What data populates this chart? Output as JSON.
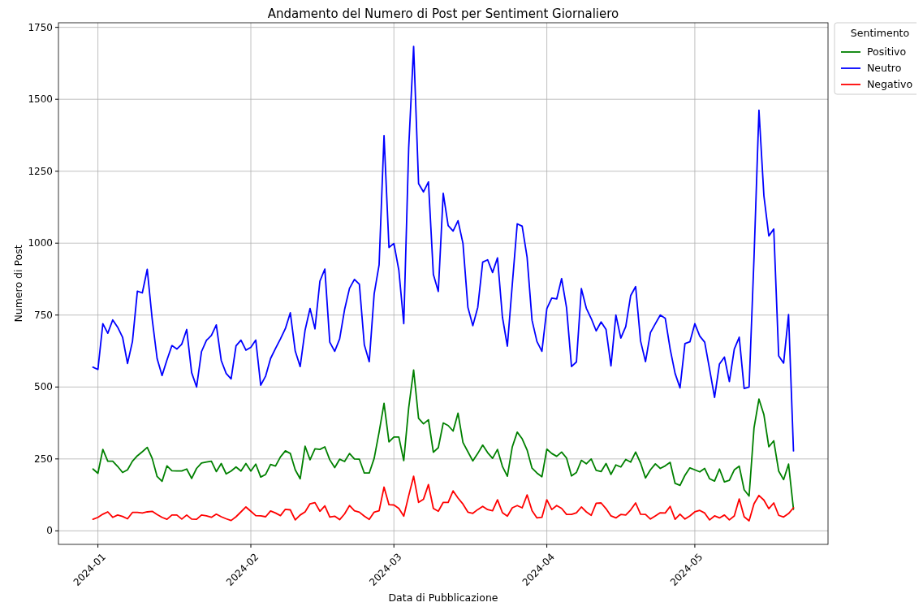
{
  "chart_data": {
    "type": "line",
    "title": "Andamento del Numero di Post per Sentiment Giornaliero",
    "xlabel": "Data di Pubblicazione",
    "ylabel": "Numero di Post",
    "legend_title": "Sentimento",
    "legend": "top right",
    "grid": true,
    "xlim": [
      "2023-12-24",
      "2024-05-28"
    ],
    "xticks": [
      {
        "value": "2024-01-01",
        "label": "2024-01"
      },
      {
        "value": "2024-02-01",
        "label": "2024-02"
      },
      {
        "value": "2024-03-01",
        "label": "2024-03"
      },
      {
        "value": "2024-04-01",
        "label": "2024-04"
      },
      {
        "value": "2024-05-01",
        "label": "2024-05"
      }
    ],
    "ylim": [
      -47,
      1766
    ],
    "yticks": [
      0,
      250,
      500,
      750,
      1000,
      1250,
      1500,
      1750
    ],
    "x": [
      "2023-12-31",
      "2024-01-01",
      "2024-01-02",
      "2024-01-03",
      "2024-01-04",
      "2024-01-05",
      "2024-01-06",
      "2024-01-07",
      "2024-01-08",
      "2024-01-09",
      "2024-01-10",
      "2024-01-11",
      "2024-01-12",
      "2024-01-13",
      "2024-01-14",
      "2024-01-15",
      "2024-01-16",
      "2024-01-17",
      "2024-01-18",
      "2024-01-19",
      "2024-01-20",
      "2024-01-21",
      "2024-01-22",
      "2024-01-23",
      "2024-01-24",
      "2024-01-25",
      "2024-01-26",
      "2024-01-27",
      "2024-01-28",
      "2024-01-29",
      "2024-01-30",
      "2024-01-31",
      "2024-02-01",
      "2024-02-02",
      "2024-02-03",
      "2024-02-04",
      "2024-02-05",
      "2024-02-06",
      "2024-02-07",
      "2024-02-08",
      "2024-02-09",
      "2024-02-10",
      "2024-02-11",
      "2024-02-12",
      "2024-02-13",
      "2024-02-14",
      "2024-02-15",
      "2024-02-16",
      "2024-02-17",
      "2024-02-18",
      "2024-02-19",
      "2024-02-20",
      "2024-02-21",
      "2024-02-22",
      "2024-02-23",
      "2024-02-24",
      "2024-02-25",
      "2024-02-26",
      "2024-02-27",
      "2024-02-28",
      "2024-02-29",
      "2024-03-01",
      "2024-03-02",
      "2024-03-03",
      "2024-03-04",
      "2024-03-05",
      "2024-03-06",
      "2024-03-07",
      "2024-03-08",
      "2024-03-09",
      "2024-03-10",
      "2024-03-11",
      "2024-03-12",
      "2024-03-13",
      "2024-03-14",
      "2024-03-15",
      "2024-03-16",
      "2024-03-17",
      "2024-03-18",
      "2024-03-19",
      "2024-03-20",
      "2024-03-21",
      "2024-03-22",
      "2024-03-23",
      "2024-03-24",
      "2024-03-25",
      "2024-03-26",
      "2024-03-27",
      "2024-03-28",
      "2024-03-29",
      "2024-03-30",
      "2024-03-31",
      "2024-04-01",
      "2024-04-02",
      "2024-04-03",
      "2024-04-04",
      "2024-04-05",
      "2024-04-06",
      "2024-04-07",
      "2024-04-08",
      "2024-04-09",
      "2024-04-10",
      "2024-04-11",
      "2024-04-12",
      "2024-04-13",
      "2024-04-14",
      "2024-04-15",
      "2024-04-16",
      "2024-04-17",
      "2024-04-18",
      "2024-04-19",
      "2024-04-20",
      "2024-04-21",
      "2024-04-22",
      "2024-04-23",
      "2024-04-24",
      "2024-04-25",
      "2024-04-26",
      "2024-04-27",
      "2024-04-28",
      "2024-04-29",
      "2024-04-30",
      "2024-05-01",
      "2024-05-02",
      "2024-05-03",
      "2024-05-04",
      "2024-05-05",
      "2024-05-06",
      "2024-05-07",
      "2024-05-08",
      "2024-05-09",
      "2024-05-10",
      "2024-05-11",
      "2024-05-12",
      "2024-05-13",
      "2024-05-14",
      "2024-05-15",
      "2024-05-16",
      "2024-05-17",
      "2024-05-18",
      "2024-05-19",
      "2024-05-20",
      "2024-05-21"
    ],
    "series": [
      {
        "name": "Positivo",
        "color": "#008000",
        "values": [
          215,
          200,
          283,
          242,
          242,
          224,
          203,
          212,
          242,
          261,
          275,
          290,
          252,
          189,
          172,
          226,
          209,
          208,
          208,
          215,
          182,
          217,
          236,
          239,
          242,
          206,
          234,
          198,
          208,
          222,
          208,
          234,
          208,
          232,
          187,
          196,
          231,
          225,
          257,
          278,
          269,
          212,
          181,
          294,
          247,
          285,
          283,
          292,
          247,
          220,
          249,
          241,
          269,
          250,
          249,
          201,
          201,
          252,
          343,
          443,
          309,
          326,
          326,
          244,
          428,
          559,
          391,
          372,
          386,
          273,
          289,
          375,
          366,
          347,
          409,
          307,
          275,
          243,
          269,
          298,
          272,
          252,
          283,
          224,
          190,
          292,
          343,
          320,
          281,
          218,
          201,
          188,
          284,
          269,
          259,
          274,
          253,
          191,
          203,
          245,
          233,
          250,
          210,
          206,
          234,
          196,
          229,
          222,
          248,
          239,
          274,
          236,
          184,
          212,
          233,
          217,
          226,
          238,
          165,
          158,
          193,
          219,
          212,
          205,
          217,
          181,
          173,
          215,
          170,
          176,
          212,
          225,
          143,
          121,
          358,
          458,
          404,
          292,
          313,
          208,
          178,
          232,
          75
        ]
      },
      {
        "name": "Neutro",
        "color": "#0000ff",
        "values": [
          569,
          561,
          720,
          687,
          733,
          708,
          673,
          582,
          658,
          833,
          827,
          909,
          736,
          599,
          540,
          594,
          644,
          632,
          649,
          700,
          550,
          500,
          623,
          662,
          679,
          716,
          592,
          547,
          528,
          643,
          663,
          628,
          638,
          663,
          506,
          538,
          599,
          634,
          667,
          703,
          758,
          625,
          571,
          698,
          773,
          702,
          868,
          910,
          656,
          624,
          667,
          769,
          843,
          874,
          857,
          647,
          588,
          824,
          925,
          1374,
          985,
          999,
          906,
          720,
          1332,
          1684,
          1207,
          1178,
          1213,
          891,
          832,
          1173,
          1061,
          1042,
          1078,
          999,
          777,
          713,
          777,
          934,
          942,
          898,
          949,
          743,
          642,
          857,
          1067,
          1059,
          951,
          732,
          658,
          624,
          772,
          809,
          806,
          877,
          775,
          571,
          587,
          842,
          774,
          738,
          695,
          726,
          700,
          573,
          750,
          670,
          710,
          818,
          849,
          660,
          588,
          689,
          720,
          750,
          739,
          632,
          547,
          497,
          651,
          657,
          720,
          677,
          656,
          561,
          464,
          580,
          604,
          519,
          632,
          673,
          495,
          500,
          950,
          1462,
          1165,
          1025,
          1049,
          608,
          583,
          752,
          278
        ]
      },
      {
        "name": "Negativo",
        "color": "#ff0000",
        "values": [
          40,
          47,
          58,
          66,
          47,
          55,
          50,
          42,
          64,
          64,
          62,
          66,
          68,
          57,
          47,
          40,
          55,
          55,
          41,
          55,
          41,
          40,
          55,
          52,
          47,
          58,
          49,
          42,
          36,
          49,
          66,
          83,
          68,
          53,
          52,
          49,
          69,
          62,
          53,
          75,
          73,
          38,
          55,
          66,
          94,
          98,
          68,
          87,
          48,
          51,
          39,
          59,
          88,
          70,
          65,
          51,
          40,
          65,
          70,
          152,
          91,
          90,
          78,
          51,
          122,
          190,
          99,
          110,
          161,
          78,
          68,
          99,
          99,
          139,
          114,
          93,
          65,
          61,
          74,
          85,
          74,
          70,
          108,
          63,
          51,
          80,
          88,
          80,
          125,
          70,
          45,
          47,
          108,
          74,
          88,
          78,
          57,
          57,
          63,
          83,
          66,
          54,
          96,
          97,
          77,
          52,
          45,
          57,
          55,
          73,
          97,
          58,
          57,
          41,
          52,
          63,
          62,
          85,
          40,
          58,
          41,
          52,
          66,
          71,
          62,
          38,
          52,
          45,
          55,
          38,
          52,
          111,
          49,
          35,
          94,
          123,
          107,
          77,
          97,
          54,
          48,
          60,
          80
        ]
      }
    ]
  }
}
